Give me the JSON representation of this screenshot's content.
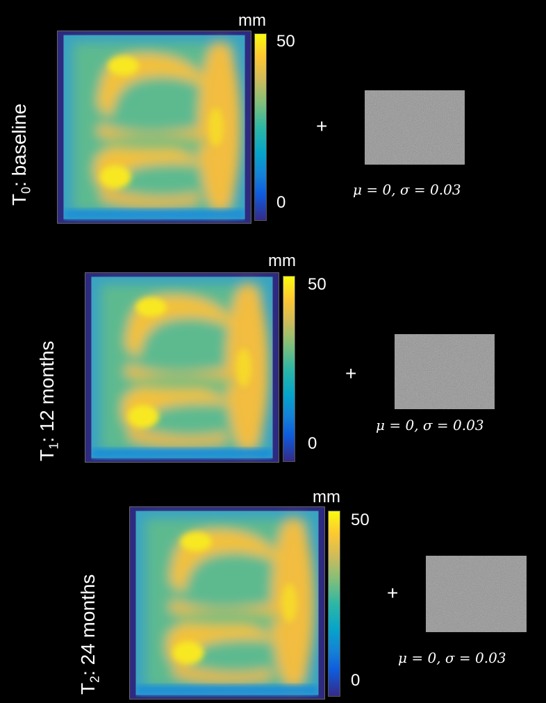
{
  "panels": [
    {
      "label_prefix": "T",
      "label_sub": "0",
      "label_rest": ": baseline",
      "unit": "mm",
      "cbar_max": "50",
      "cbar_min": "0",
      "plus": "+",
      "noise_params": "μ = 0, σ = 0.03"
    },
    {
      "label_prefix": "T",
      "label_sub": "1",
      "label_rest": ": 12 months",
      "unit": "mm",
      "cbar_max": "50",
      "cbar_min": "0",
      "plus": "+",
      "noise_params": "μ = 0, σ = 0.03"
    },
    {
      "label_prefix": "T",
      "label_sub": "2",
      "label_rest": ": 24 months",
      "unit": "mm",
      "cbar_max": "50",
      "cbar_min": "0",
      "plus": "+",
      "noise_params": "μ = 0, σ = 0.03"
    }
  ],
  "colors": {
    "background": "#000000",
    "colormap": [
      "#352a87",
      "#0f5cdd",
      "#1481d6",
      "#06a4ca",
      "#2eb7a4",
      "#87bf77",
      "#d1bb59",
      "#fec832",
      "#f9fb0e"
    ],
    "border_mask": "#2e2a80"
  }
}
